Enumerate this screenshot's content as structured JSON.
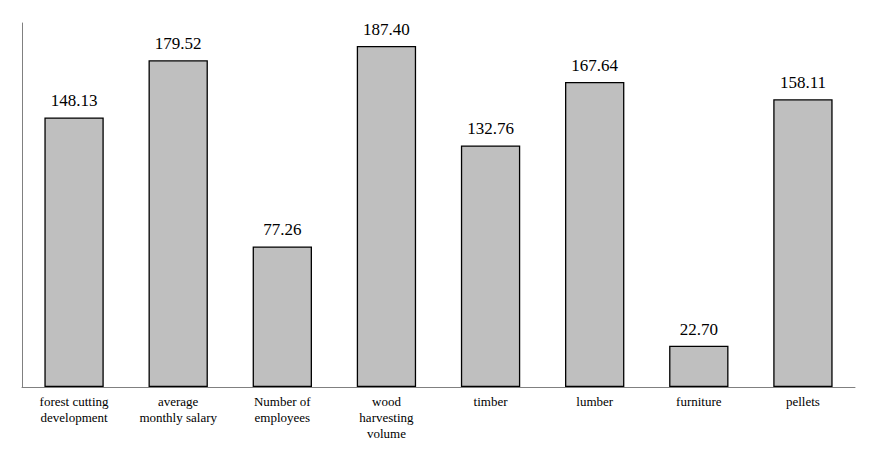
{
  "chart_data": {
    "type": "bar",
    "categories": [
      "forest cutting\ndevelopment",
      "average\nmonthly salary",
      "Number of\nemployees",
      "wood\nharvesting\nvolume",
      "timber",
      "lumber",
      "furniture",
      "pellets"
    ],
    "values": [
      148.13,
      179.52,
      77.26,
      187.4,
      132.76,
      167.64,
      22.7,
      158.11
    ],
    "value_labels": [
      "148.13",
      "179.52",
      "77.26",
      "187.40",
      "132.76",
      "167.64",
      "22.70",
      "158.11"
    ],
    "color": "#bfbfbf",
    "ylim": [
      0,
      200
    ],
    "grid": false,
    "data_labels": true,
    "tick_labels": "x"
  }
}
